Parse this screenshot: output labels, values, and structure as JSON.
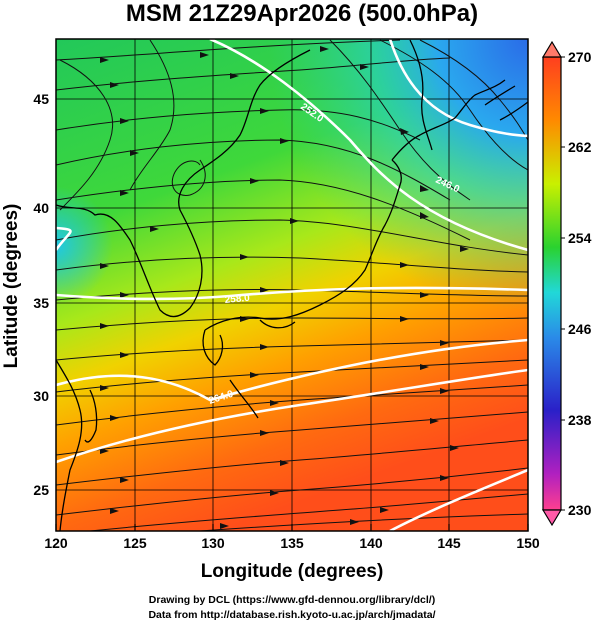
{
  "title": "MSM 21Z29Apr2026 (500.0hPa)",
  "xaxis": {
    "label": "Longitude (degrees)",
    "range": [
      120,
      150
    ],
    "ticks": [
      "120",
      "125",
      "130",
      "135",
      "140",
      "145",
      "150"
    ]
  },
  "yaxis": {
    "label": "Latitude  (degrees)",
    "range": [
      22.4,
      47.6
    ],
    "ticks": [
      "25",
      "30",
      "35",
      "40",
      "45"
    ]
  },
  "colorbar": {
    "range": [
      230,
      270
    ],
    "labels": [
      "270",
      "262",
      "254",
      "246",
      "238",
      "230"
    ],
    "colors": [
      "#ff3f8f",
      "#3f2fd0",
      "#21c0ea",
      "#2ad22f",
      "#c9f000",
      "#ff8a00",
      "#ff3f1f"
    ]
  },
  "contours": [
    {
      "label": "246.0",
      "color": "#ffffff"
    },
    {
      "label": "252.0",
      "color": "#ffffff"
    },
    {
      "label": "258.0",
      "color": "#ffffff"
    },
    {
      "label": "264.0",
      "color": "#ffffff"
    }
  ],
  "footer": {
    "line1": "Drawing by DCL (https://www.gfd-dennou.org/library/dcl/)",
    "line2": "Data from http://database.rish.kyoto-u.ac.jp/arch/jmadata/"
  }
}
